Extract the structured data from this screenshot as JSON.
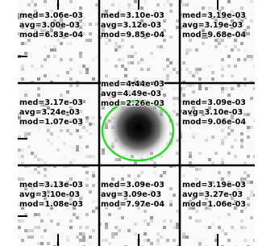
{
  "cells": [
    {
      "med": "med=3.06e-03",
      "avg": "avg=3.00e-03",
      "mod": "mod=6.83e-04"
    },
    {
      "med": "med=3.10e-03",
      "avg": "avg=3.12e-03",
      "mod": "mod=9.85e-04"
    },
    {
      "med": "med=3.19e-03",
      "avg": "avg=3.19e-03",
      "mod": "mod=9.68e-04"
    },
    {
      "med": "med=3.17e-03",
      "avg": "avg=3.24e-03",
      "mod": "mod=1.07e-03"
    },
    {
      "med": "med=4.44e-03",
      "avg": "avg=4.49e-03",
      "mod": "mod=2.26e-03"
    },
    {
      "med": "med=3.09e-03",
      "avg": "avg=3.10e-03",
      "mod": "mod=9.06e-04"
    },
    {
      "med": "med=3.13e-03",
      "avg": "avg=3.10e-03",
      "mod": "mod=1.08e-03"
    },
    {
      "med": "med=3.09e-03",
      "avg": "avg=3.09e-03",
      "mod": "mod=7.97e-04"
    },
    {
      "med": "med=3.19e-03",
      "avg": "avg=3.27e-03",
      "mod": "mod=1.06e-03"
    }
  ]
}
